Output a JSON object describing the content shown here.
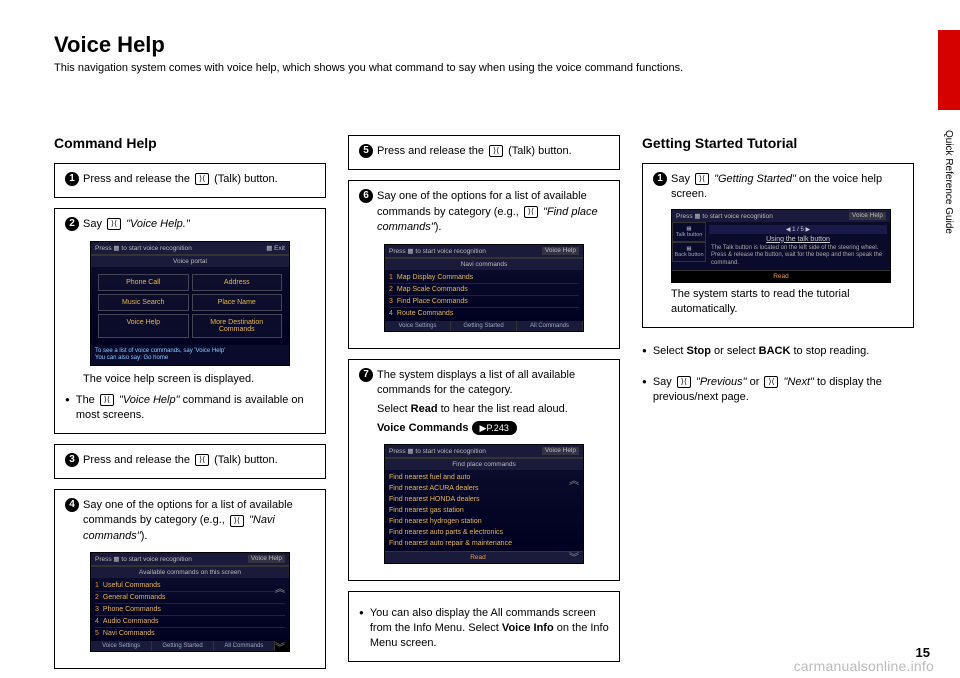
{
  "page": {
    "title": "Voice Help",
    "subtitle": "This navigation system comes with voice help, which shows you what command to say when using the voice command functions.",
    "side_label": "Quick Reference Guide",
    "page_number": "15",
    "watermark": "carmanualsonline.info"
  },
  "col1": {
    "heading": "Command Help",
    "s1": {
      "text": "Press and release the ",
      "after": " (Talk) button."
    },
    "s2": {
      "pre": "Say ",
      "cmd": "\"Voice Help.\"",
      "caption": "The voice help screen is displayed.",
      "bullet": "The ",
      "bullet_cmd": "\"Voice Help\"",
      "bullet_after": " command is available on most screens."
    },
    "screen2": {
      "bar_left": "Press",
      "bar_mid": "to start voice recognition",
      "bar_right": "Exit",
      "sub": "Voice portal",
      "cells": [
        "Phone Call",
        "Address",
        "Music Search",
        "Place Name",
        "Voice Help",
        "More Destination Commands"
      ],
      "foot1": "To see a list of voice commands, say 'Voice Help'",
      "foot2": "You can also say: Go home"
    },
    "s3": {
      "text": "Press and release the ",
      "after": " (Talk) button."
    },
    "s4": {
      "pre": "Say one of the options for a list of available commands by category (e.g., ",
      "cmd": "\"Navi commands\"",
      "after": ")."
    },
    "screen4": {
      "bar_left": "Press",
      "bar_mid": "to start voice recognition",
      "bar_right": "Voice Help",
      "sub": "Available commands on this screen",
      "items": [
        "Useful Commands",
        "General Commands",
        "Phone Commands",
        "Audio Commands",
        "Navi Commands"
      ],
      "tabs": [
        "Voice Settings",
        "Getting Started",
        "All Commands"
      ]
    }
  },
  "col2": {
    "s5": {
      "text": "Press and release the ",
      "after": " (Talk) button."
    },
    "s6": {
      "pre": "Say one of the options for a list of available commands by category (e.g., ",
      "cmd": "\"Find place commands\"",
      "after": ")."
    },
    "screen6": {
      "bar_left": "Press",
      "bar_mid": "to start voice recognition",
      "bar_right": "Voice Help",
      "sub": "Navi commands",
      "items": [
        "Map Display Commands",
        "Map Scale Commands",
        "Find Place Commands",
        "Route Commands"
      ],
      "tabs": [
        "Voice Settings",
        "Getting Started",
        "All Commands"
      ]
    },
    "s7": {
      "l1": "The system displays a list of all available commands for the category.",
      "l2a": "Select ",
      "l2b": "Read",
      "l2c": " to hear the list read aloud.",
      "l3a": "Voice Commands ",
      "l3b": "▶P.243"
    },
    "screen7": {
      "bar_left": "Press",
      "bar_mid": "to start voice recognition",
      "bar_right": "Voice Help",
      "sub": "Find place commands",
      "items": [
        "Find nearest fuel and auto",
        "Find nearest ACURA dealers",
        "Find nearest HONDA dealers",
        "Find nearest gas station",
        "Find nearest hydrogen station",
        "Find nearest auto parts & electronics",
        "Find nearest auto repair & maintenance"
      ],
      "read": "Read"
    },
    "note": {
      "a": "You can also display the All commands screen from the Info Menu. Select ",
      "b": "Voice Info",
      "c": " on the Info Menu screen."
    }
  },
  "col3": {
    "heading": "Getting Started Tutorial",
    "s1": {
      "pre": "Say ",
      "cmd": "\"Getting Started\"",
      "after": " on the voice help screen."
    },
    "screen": {
      "bar_left": "Press",
      "bar_mid": "to start voice recognition",
      "bar_right": "Voice Help",
      "left1": "Talk button",
      "left2": "Back button",
      "pager": "◀   1 / 5   ▶",
      "title": "Using the talk button",
      "text": "The Talk button is located on the left side of the steering wheel. Press & release the button, wait for the beep and then speak the command.",
      "read": "Read"
    },
    "caption": "The system starts to read the tutorial automatically.",
    "b1a": "Select ",
    "b1b": "Stop",
    "b1c": " or select ",
    "b1d": "BACK",
    "b1e": " to stop reading.",
    "b2a": "Say ",
    "b2b": "\"Previous\"",
    "b2c": " or ",
    "b2d": "\"Next\"",
    "b2e": " to display the previous/next page."
  }
}
